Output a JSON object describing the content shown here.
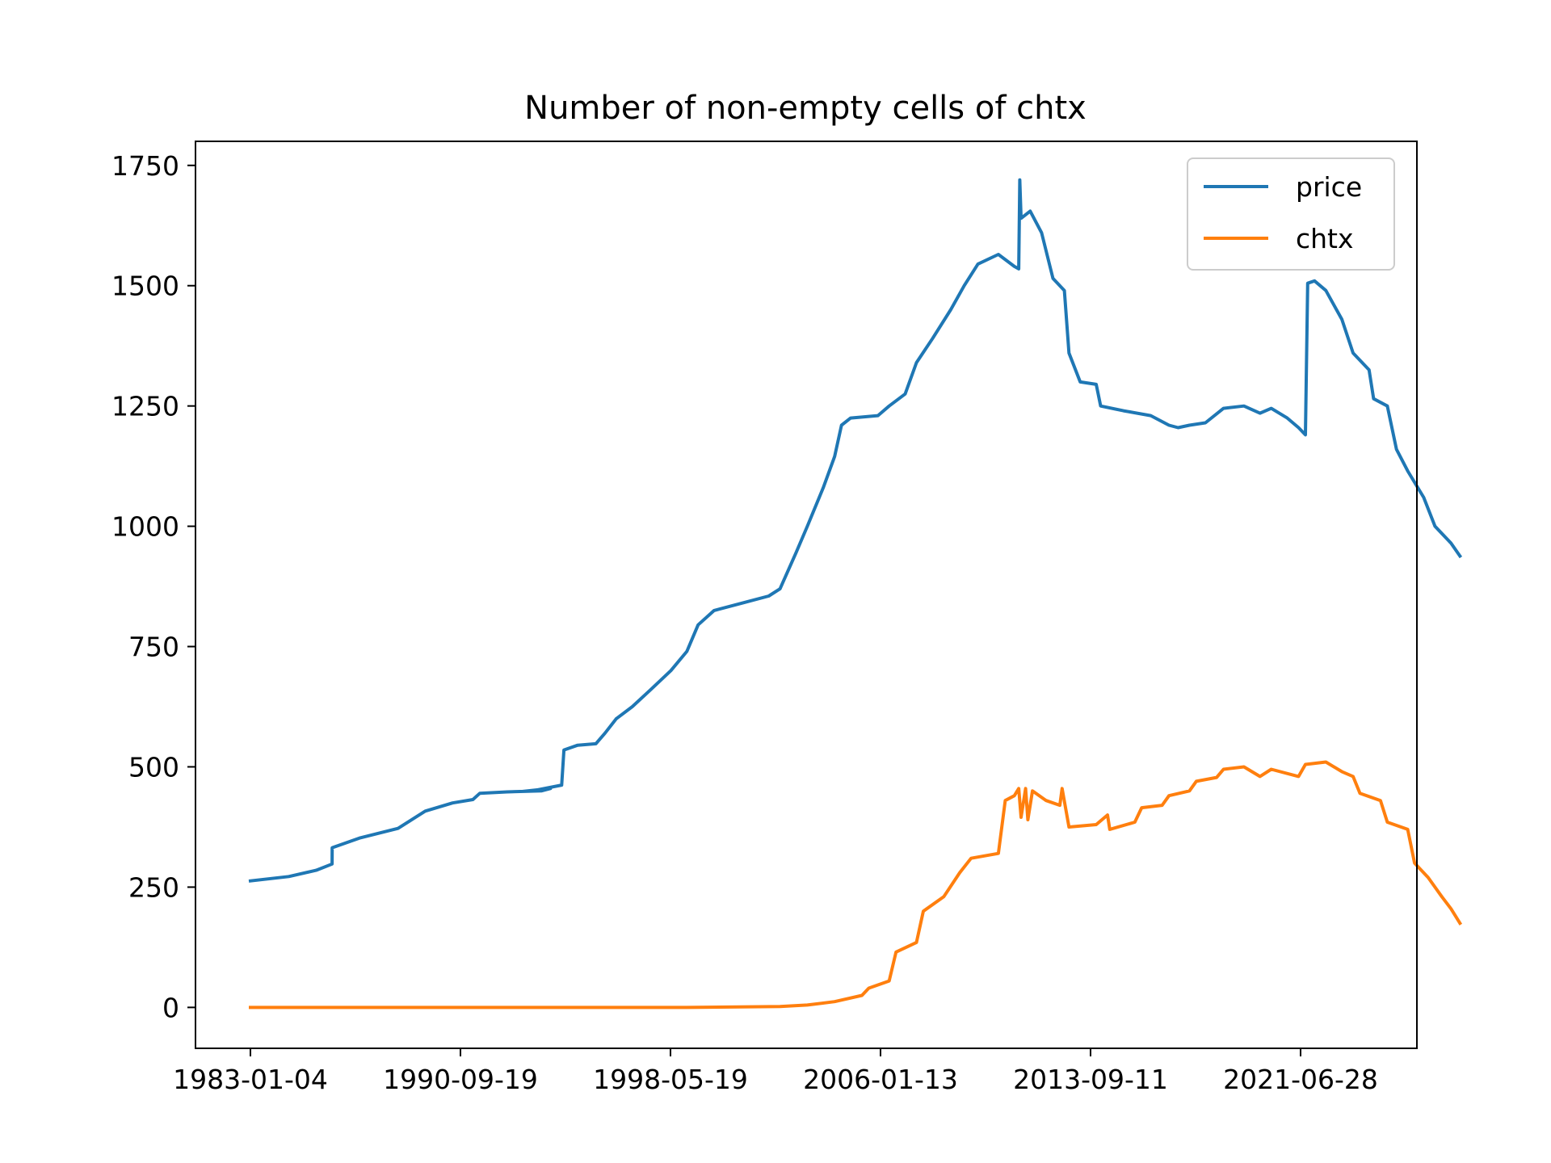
{
  "chart_data": {
    "type": "line",
    "title": "Number of non-empty cells of chtx",
    "xlabel": "",
    "ylabel": "",
    "x_tick_labels": [
      "1983-01-04",
      "1990-09-19",
      "1998-05-19",
      "2006-01-13",
      "2013-09-11",
      "2021-06-28"
    ],
    "y_tick_labels": [
      "0",
      "250",
      "500",
      "750",
      "1000",
      "1250",
      "1500",
      "1750"
    ],
    "ylim": [
      -85,
      1800
    ],
    "xlim": [
      "1981-01-01",
      "2026-12-31"
    ],
    "grid": false,
    "legend_position": "top-right",
    "series": [
      {
        "name": "price",
        "color": "#1f77b4",
        "points": [
          [
            "1983-01-04",
            263
          ],
          [
            "1984-06-01",
            272
          ],
          [
            "1985-06-01",
            285
          ],
          [
            "1986-01-01",
            298
          ],
          [
            "1986-01-02",
            332
          ],
          [
            "1987-01-01",
            352
          ],
          [
            "1988-06-01",
            372
          ],
          [
            "1989-06-01",
            408
          ],
          [
            "1990-06-01",
            425
          ],
          [
            "1991-03-01",
            432
          ],
          [
            "1991-06-01",
            445
          ],
          [
            "1992-06-01",
            448
          ],
          [
            "1993-09-01",
            450
          ],
          [
            "1994-01-01",
            455
          ],
          [
            "1992-12-31",
            449
          ],
          [
            "1993-06-01",
            451
          ],
          [
            "1994-06-01",
            462
          ],
          [
            "1994-07-01",
            535
          ],
          [
            "1995-01-01",
            545
          ],
          [
            "1995-09-01",
            548
          ],
          [
            "1996-01-01",
            570
          ],
          [
            "1996-06-01",
            600
          ],
          [
            "1997-01-01",
            625
          ],
          [
            "1997-09-01",
            660
          ],
          [
            "1998-06-01",
            700
          ],
          [
            "1999-01-01",
            740
          ],
          [
            "1999-06-01",
            795
          ],
          [
            "2000-01-01",
            825
          ],
          [
            "2001-01-01",
            840
          ],
          [
            "2002-01-01",
            855
          ],
          [
            "2002-06-01",
            870
          ],
          [
            "2003-01-01",
            945
          ],
          [
            "2003-06-01",
            1000
          ],
          [
            "2004-01-01",
            1080
          ],
          [
            "2004-06-01",
            1145
          ],
          [
            "2004-09-01",
            1210
          ],
          [
            "2005-01-01",
            1225
          ],
          [
            "2006-01-01",
            1230
          ],
          [
            "2006-06-01",
            1250
          ],
          [
            "2007-01-01",
            1275
          ],
          [
            "2007-06-01",
            1340
          ],
          [
            "2008-01-01",
            1390
          ],
          [
            "2008-09-01",
            1450
          ],
          [
            "2009-03-01",
            1500
          ],
          [
            "2009-09-01",
            1545
          ],
          [
            "2010-06-01",
            1565
          ],
          [
            "2011-01-01",
            1540
          ],
          [
            "2011-03-01",
            1535
          ],
          [
            "2011-03-15",
            1720
          ],
          [
            "2011-04-01",
            1640
          ],
          [
            "2011-08-01",
            1655
          ],
          [
            "2012-01-01",
            1610
          ],
          [
            "2012-06-01",
            1515
          ],
          [
            "2012-11-01",
            1490
          ],
          [
            "2013-01-01",
            1360
          ],
          [
            "2013-06-01",
            1300
          ],
          [
            "2014-01-01",
            1295
          ],
          [
            "2014-03-01",
            1250
          ],
          [
            "2015-01-01",
            1240
          ],
          [
            "2016-01-01",
            1230
          ],
          [
            "2016-09-01",
            1210
          ],
          [
            "2017-01-01",
            1205
          ],
          [
            "2017-06-01",
            1210
          ],
          [
            "2018-01-01",
            1215
          ],
          [
            "2018-09-01",
            1245
          ],
          [
            "2019-06-01",
            1250
          ],
          [
            "2020-01-01",
            1235
          ],
          [
            "2020-06-01",
            1245
          ],
          [
            "2021-01-01",
            1225
          ],
          [
            "2021-06-01",
            1205
          ],
          [
            "2021-09-01",
            1190
          ],
          [
            "2021-10-01",
            1505
          ],
          [
            "2022-01-01",
            1510
          ],
          [
            "2022-06-01",
            1490
          ],
          [
            "2023-01-01",
            1430
          ],
          [
            "2023-06-01",
            1360
          ],
          [
            "2024-01-01",
            1325
          ],
          [
            "2024-03-01",
            1265
          ],
          [
            "2024-09-01",
            1250
          ],
          [
            "2025-01-01",
            1160
          ],
          [
            "2025-06-01",
            1115
          ],
          [
            "2026-01-01",
            1060
          ],
          [
            "2026-06-01",
            1000
          ],
          [
            "2027-01-01",
            965
          ],
          [
            "2027-05-01",
            938
          ]
        ]
      },
      {
        "name": "chtx",
        "color": "#ff7f0e",
        "points": [
          [
            "1983-01-04",
            0
          ],
          [
            "1999-01-01",
            0
          ],
          [
            "2002-06-01",
            2
          ],
          [
            "2003-06-01",
            5
          ],
          [
            "2004-06-01",
            12
          ],
          [
            "2005-06-01",
            25
          ],
          [
            "2005-09-01",
            40
          ],
          [
            "2006-06-01",
            55
          ],
          [
            "2006-09-01",
            115
          ],
          [
            "2007-06-01",
            135
          ],
          [
            "2007-09-01",
            200
          ],
          [
            "2008-06-01",
            230
          ],
          [
            "2009-01-01",
            280
          ],
          [
            "2009-06-01",
            310
          ],
          [
            "2010-06-01",
            320
          ],
          [
            "2010-09-01",
            430
          ],
          [
            "2011-01-01",
            440
          ],
          [
            "2011-03-01",
            455
          ],
          [
            "2011-04-01",
            395
          ],
          [
            "2011-06-01",
            455
          ],
          [
            "2011-07-01",
            390
          ],
          [
            "2011-09-01",
            450
          ],
          [
            "2012-03-01",
            430
          ],
          [
            "2012-09-01",
            420
          ],
          [
            "2012-10-01",
            455
          ],
          [
            "2013-01-01",
            375
          ],
          [
            "2014-01-01",
            380
          ],
          [
            "2014-06-01",
            400
          ],
          [
            "2014-07-01",
            370
          ],
          [
            "2015-06-01",
            385
          ],
          [
            "2015-09-01",
            415
          ],
          [
            "2016-06-01",
            420
          ],
          [
            "2016-09-01",
            440
          ],
          [
            "2017-06-01",
            450
          ],
          [
            "2017-09-01",
            470
          ],
          [
            "2018-06-01",
            478
          ],
          [
            "2018-09-01",
            495
          ],
          [
            "2019-06-01",
            500
          ],
          [
            "2020-01-01",
            480
          ],
          [
            "2020-06-01",
            495
          ],
          [
            "2021-06-01",
            480
          ],
          [
            "2021-09-01",
            505
          ],
          [
            "2022-06-01",
            510
          ],
          [
            "2023-01-01",
            490
          ],
          [
            "2023-06-01",
            480
          ],
          [
            "2023-09-01",
            445
          ],
          [
            "2024-06-01",
            430
          ],
          [
            "2024-09-01",
            385
          ],
          [
            "2025-06-01",
            370
          ],
          [
            "2025-09-01",
            300
          ],
          [
            "2026-03-01",
            270
          ],
          [
            "2026-09-01",
            230
          ],
          [
            "2027-01-01",
            205
          ],
          [
            "2027-05-01",
            175
          ]
        ]
      }
    ]
  }
}
